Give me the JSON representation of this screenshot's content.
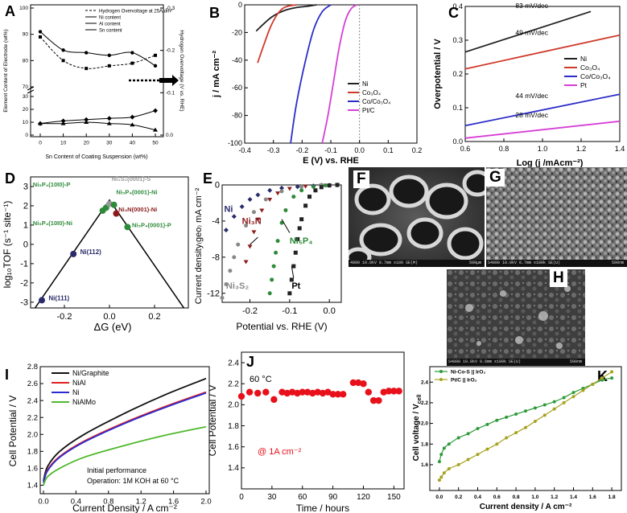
{
  "panels": {
    "A": {
      "label": "A",
      "type": "line",
      "xlabel": "Sn Content of Coating Suspension (wt%)",
      "ylabel": "Element Content of Electrode (wt%)",
      "y2label": "Hydrogen Overvoltage (V vs. RHE)",
      "xticks": [
        "0",
        "10",
        "20",
        "30",
        "40",
        "50"
      ],
      "yticks_upper": [
        "100",
        "90",
        "80",
        "70"
      ],
      "yticks_lower": [
        "30",
        "20",
        "10",
        "0"
      ],
      "y2ticks": [
        "-0.3",
        "-0.2",
        "-0.1",
        "0.0"
      ],
      "legend": [
        "Hydrogen Overvoltage at 25A/dm²",
        "Ni content",
        "Al content",
        "Sn content"
      ],
      "series": [
        {
          "name": "Hydrogen Overvoltage at 25A/dm²",
          "x": [
            0,
            10,
            20,
            30,
            40,
            50
          ],
          "y": [
            89,
            80,
            77,
            78,
            79,
            82
          ]
        },
        {
          "name": "Ni content",
          "x": [
            0,
            10,
            20,
            30,
            40,
            50
          ],
          "y": [
            91,
            84,
            83,
            82,
            83,
            78
          ]
        },
        {
          "name": "Al content",
          "x": [
            0,
            10,
            20,
            30,
            40,
            50
          ],
          "y": [
            9,
            11,
            12,
            13,
            14,
            19
          ]
        },
        {
          "name": "Sn content",
          "x": [
            0,
            10,
            20,
            30,
            40,
            50
          ],
          "y": [
            9,
            9,
            10,
            9,
            8,
            4
          ]
        }
      ]
    },
    "B": {
      "label": "B",
      "type": "line",
      "xlabel": "E (V) vs. RHE",
      "ylabel": "j / mA cm⁻²",
      "xlim": [
        -0.4,
        0.2
      ],
      "ylim": [
        -100,
        0
      ],
      "xticks": [
        "-0.4",
        "-0.3",
        "-0.2",
        "-0.1",
        "0.0",
        "0.1",
        "0.2"
      ],
      "yticks": [
        "0",
        "-20",
        "-40",
        "-60",
        "-80",
        "-100"
      ],
      "legend": [
        "Ni",
        "Co₃O₄",
        "Co/Co₃O₄",
        "Pt/C"
      ],
      "colors": [
        "#222222",
        "#d03a2b",
        "#2c2cc8",
        "#d63fd6"
      ],
      "series": [
        {
          "name": "Ni",
          "x": [
            -0.36,
            -0.33,
            -0.3,
            -0.26,
            -0.22,
            -0.18,
            -0.15
          ],
          "y": [
            -19,
            -13,
            -8,
            -4,
            -2,
            -1,
            0
          ]
        },
        {
          "name": "Co₃O₄",
          "x": [
            -0.355,
            -0.33,
            -0.31,
            -0.29,
            -0.27,
            -0.25,
            -0.22
          ],
          "y": [
            -42,
            -27,
            -16,
            -8,
            -3,
            -1,
            0
          ]
        },
        {
          "name": "Co/Co₃O₄",
          "x": [
            -0.24,
            -0.22,
            -0.19,
            -0.16,
            -0.13,
            -0.1
          ],
          "y": [
            -100,
            -72,
            -42,
            -18,
            -5,
            0
          ]
        },
        {
          "name": "Pt/C",
          "x": [
            -0.13,
            -0.11,
            -0.09,
            -0.07,
            -0.05,
            -0.03,
            -0.01
          ],
          "y": [
            -100,
            -80,
            -55,
            -30,
            -12,
            -3,
            0
          ]
        }
      ]
    },
    "C": {
      "label": "C",
      "type": "line",
      "xlabel": "Log (j /mAcm⁻²)",
      "ylabel": "Overpotential / V",
      "xlim": [
        0.6,
        1.4
      ],
      "ylim": [
        0.0,
        0.4
      ],
      "xticks": [
        "0.6",
        "0.8",
        "1.0",
        "1.2",
        "1.4"
      ],
      "yticks": [
        "0.0",
        "0.1",
        "0.2",
        "0.3",
        "0.4"
      ],
      "legend": [
        "Ni",
        "Co₃O₄",
        "Co/Co₃O₄",
        "Pt"
      ],
      "colors": [
        "#222222",
        "#d03a2b",
        "#2c2cc8",
        "#d63fd6"
      ],
      "annotations": [
        "83 mV/dec",
        "49 mV/dec",
        "44 mV/dec",
        "28 mV/dec"
      ],
      "series": [
        {
          "name": "Ni",
          "x": [
            0.6,
            1.25
          ],
          "y": [
            0.265,
            0.385
          ]
        },
        {
          "name": "Co₃O₄",
          "x": [
            0.6,
            1.4
          ],
          "y": [
            0.215,
            0.315
          ]
        },
        {
          "name": "Co/Co₃O₄",
          "x": [
            0.6,
            1.4
          ],
          "y": [
            0.047,
            0.14
          ]
        },
        {
          "name": "Pt",
          "x": [
            0.6,
            1.4
          ],
          "y": [
            0.01,
            0.06
          ]
        }
      ]
    },
    "D": {
      "label": "D",
      "type": "scatter",
      "xlabel": "ΔG (eV)",
      "ylabel": "log₁₀TOF (s⁻¹ site⁻¹)",
      "xlim": [
        -0.35,
        0.35
      ],
      "ylim": [
        -3.3,
        3.5
      ],
      "xticks": [
        "-0.2",
        "0.0",
        "0.2"
      ],
      "yticks": [
        "3",
        "2",
        "1",
        "0",
        "-1",
        "-2",
        "-3"
      ],
      "points": [
        {
          "label": "Ni(111)",
          "x": -0.3,
          "y": -2.9,
          "color": "#2b2b6b"
        },
        {
          "label": "Ni(112)",
          "x": -0.16,
          "y": -0.5,
          "color": "#2b2b6b"
        },
        {
          "label": "Ni₅P₄(10ī0)-Ni",
          "x": -0.03,
          "y": 1.75,
          "color": "#2e8b3a"
        },
        {
          "label": "Ni₅P₄(10ī0)-P",
          "x": -0.015,
          "y": 1.9,
          "color": "#2e8b3a"
        },
        {
          "label": "Ni₃S₂(0001)-S",
          "x": 0.0,
          "y": 2.1,
          "color": "#999999"
        },
        {
          "label": "Ni₅P₄(0001)-Ni",
          "x": 0.02,
          "y": 2.05,
          "color": "#2e8b3a"
        },
        {
          "label": "Ni₃N(0001)-Ni",
          "x": 0.03,
          "y": 1.6,
          "color": "#8b1a1a"
        },
        {
          "label": "Ni₅P₄(0001)-P",
          "x": 0.08,
          "y": 0.9,
          "color": "#2e8b3a"
        }
      ]
    },
    "E": {
      "label": "E",
      "type": "scatter",
      "xlabel": "Potential vs. RHE (V)",
      "ylabel": "Current density₍geo₎ mA cm⁻²",
      "xlim": [
        -0.27,
        0.03
      ],
      "ylim": [
        -13,
        0
      ],
      "xticks": [
        "-0.2",
        "-0.1",
        "0.0"
      ],
      "yticks": [
        "0",
        "-4",
        "-8",
        "-12"
      ],
      "annotations": [
        "Ni",
        "Ni₃N",
        "Ni₃S₂",
        "Ni₅P₄",
        "Pt"
      ],
      "series": [
        {
          "name": "Ni",
          "color": "#2b2b6b",
          "marker": "diamond",
          "x": [
            -0.26,
            -0.24,
            -0.22,
            -0.2,
            -0.18,
            -0.15,
            -0.12,
            -0.08,
            -0.04,
            0.0,
            0.02
          ],
          "y": [
            -5,
            -3.5,
            -2.4,
            -1.6,
            -1.1,
            -0.6,
            -0.35,
            -0.2,
            -0.1,
            -0.05,
            0
          ]
        },
        {
          "name": "Ni₃N",
          "color": "#8b1a1a",
          "marker": "triangle",
          "x": [
            -0.21,
            -0.2,
            -0.19,
            -0.18,
            -0.17,
            -0.15,
            -0.13,
            -0.1,
            -0.06,
            -0.02,
            0.02
          ],
          "y": [
            -8.5,
            -6.8,
            -5.2,
            -3.8,
            -2.8,
            -1.6,
            -0.9,
            -0.4,
            -0.15,
            -0.05,
            0
          ]
        },
        {
          "name": "Ni₃S₂",
          "color": "#888888",
          "marker": "circle",
          "x": [
            -0.27,
            -0.26,
            -0.25,
            -0.24,
            -0.23,
            -0.21,
            -0.19,
            -0.16,
            -0.12,
            -0.07,
            -0.02
          ],
          "y": [
            -12.5,
            -11,
            -9.5,
            -8,
            -6.6,
            -4.5,
            -3,
            -1.6,
            -0.7,
            -0.2,
            0
          ]
        },
        {
          "name": "Ni₅P₄",
          "color": "#2e8b3a",
          "marker": "circle",
          "x": [
            -0.15,
            -0.145,
            -0.14,
            -0.135,
            -0.13,
            -0.12,
            -0.11,
            -0.09,
            -0.07,
            -0.04,
            -0.01,
            0.02
          ],
          "y": [
            -12,
            -10.5,
            -9,
            -7.5,
            -6.2,
            -4.2,
            -2.8,
            -1.3,
            -0.6,
            -0.2,
            -0.05,
            0
          ]
        },
        {
          "name": "Pt",
          "color": "#222222",
          "marker": "square",
          "x": [
            -0.1,
            -0.095,
            -0.09,
            -0.085,
            -0.08,
            -0.075,
            -0.07,
            -0.06,
            -0.05,
            -0.035,
            -0.02,
            0.0,
            0.02
          ],
          "y": [
            -12,
            -10.5,
            -9,
            -7.5,
            -6,
            -4.8,
            -3.8,
            -2.3,
            -1.3,
            -0.6,
            -0.25,
            -0.05,
            0
          ]
        }
      ]
    },
    "F": {
      "label": "F",
      "caption": "4800 10.0kV 8.7mm x100 SE(M)",
      "scale": "500μm"
    },
    "G": {
      "label": "G",
      "caption": "S4800 10.0kV 8.7mm x100k SE(U)",
      "scale": "500nm"
    },
    "H": {
      "label": "H",
      "caption": "S4800 10.0kV 9.6mm x100k SE(U)",
      "scale": "500nm"
    },
    "I": {
      "label": "I",
      "type": "line",
      "xlabel": "Current Density / A cm⁻²",
      "ylabel": "Cell Potential / V",
      "xlim": [
        0,
        2.0
      ],
      "ylim": [
        1.3,
        2.8
      ],
      "xticks": [
        "0.0",
        "0.4",
        "0.8",
        "1.2",
        "1.6",
        "2.0"
      ],
      "yticks": [
        "1.4",
        "1.6",
        "1.8",
        "2.0",
        "2.2",
        "2.4",
        "2.6",
        "2.8"
      ],
      "legend": [
        "Ni/Graphite",
        "NiAl",
        "Ni",
        "NiAlMo"
      ],
      "colors": [
        "#111111",
        "#e02020",
        "#2a2ad0",
        "#4fb82b"
      ],
      "text_lines": [
        "Initial performance",
        "Operation: 1M KOH at 60 °C"
      ],
      "series": [
        {
          "name": "Ni/Graphite",
          "x": [
            0,
            0.05,
            0.2,
            0.5,
            1.0,
            1.5,
            2.0
          ],
          "y": [
            1.45,
            1.62,
            1.8,
            2.0,
            2.25,
            2.47,
            2.66
          ]
        },
        {
          "name": "NiAl",
          "x": [
            0,
            0.05,
            0.2,
            0.5,
            1.0,
            1.5,
            2.0
          ],
          "y": [
            1.43,
            1.58,
            1.74,
            1.92,
            2.14,
            2.33,
            2.5
          ]
        },
        {
          "name": "Ni",
          "x": [
            0,
            0.05,
            0.2,
            0.5,
            1.0,
            1.5,
            2.0
          ],
          "y": [
            1.43,
            1.57,
            1.73,
            1.91,
            2.13,
            2.32,
            2.49
          ]
        },
        {
          "name": "NiAlMo",
          "x": [
            0,
            0.05,
            0.2,
            0.5,
            1.0,
            1.5,
            2.0
          ],
          "y": [
            1.4,
            1.5,
            1.6,
            1.73,
            1.87,
            1.99,
            2.09
          ]
        }
      ]
    },
    "J": {
      "label": "J",
      "type": "scatter",
      "xlabel": "Time / hours",
      "ylabel": "Cell Potential / V",
      "xlim": [
        0,
        160
      ],
      "ylim": [
        1.2,
        2.5
      ],
      "xticks": [
        "0",
        "30",
        "60",
        "90",
        "120",
        "150"
      ],
      "yticks": [
        "1.4",
        "1.6",
        "1.8",
        "2.0",
        "2.2",
        "2.4"
      ],
      "annotations": [
        "60 °C",
        "@ 1A cm⁻²"
      ],
      "color": "#e8101a",
      "x": [
        0,
        8,
        16,
        24,
        32,
        40,
        45,
        50,
        55,
        60,
        65,
        70,
        75,
        80,
        85,
        90,
        95,
        100,
        110,
        115,
        120,
        125,
        130,
        135,
        140,
        145,
        150,
        155
      ],
      "y": [
        2.08,
        2.12,
        2.11,
        2.12,
        2.05,
        2.12,
        2.11,
        2.12,
        2.11,
        2.12,
        2.12,
        2.11,
        2.12,
        2.11,
        2.12,
        2.1,
        2.1,
        2.1,
        2.21,
        2.21,
        2.2,
        2.12,
        2.04,
        2.04,
        2.12,
        2.13,
        2.13,
        2.13
      ]
    },
    "K": {
      "label": "K",
      "type": "line",
      "xlabel": "Current density / A cm⁻²",
      "ylabel": "Cell voltage / V",
      "ylabel_sub": "cell",
      "xlim": [
        -0.1,
        1.9
      ],
      "ylim": [
        1.35,
        2.55
      ],
      "xticks": [
        "0.0",
        "0.2",
        "0.4",
        "0.6",
        "0.8",
        "1.0",
        "1.2",
        "1.4",
        "1.6",
        "1.8"
      ],
      "yticks": [
        "1.6",
        "1.8",
        "2.0",
        "2.2",
        "2.4"
      ],
      "legend": [
        "Ni-Co-S || IrO₂",
        "Pt/C || IrO₂"
      ],
      "colors": [
        "#2f9a3a",
        "#a7a321"
      ],
      "series": [
        {
          "name": "Ni-Co-S || IrO₂",
          "x": [
            0.0,
            0.02,
            0.05,
            0.1,
            0.2,
            0.3,
            0.4,
            0.5,
            0.6,
            0.7,
            0.8,
            0.9,
            1.0,
            1.1,
            1.2,
            1.3,
            1.4,
            1.5,
            1.6,
            1.7,
            1.8
          ],
          "y": [
            1.63,
            1.7,
            1.76,
            1.8,
            1.86,
            1.9,
            1.95,
            1.99,
            2.03,
            2.06,
            2.09,
            2.12,
            2.15,
            2.18,
            2.21,
            2.25,
            2.3,
            2.34,
            2.38,
            2.42,
            2.44
          ]
        },
        {
          "name": "Pt/C || IrO₂",
          "x": [
            0.0,
            0.02,
            0.05,
            0.1,
            0.2,
            0.3,
            0.4,
            0.5,
            0.6,
            0.7,
            0.8,
            0.9,
            1.0,
            1.1,
            1.2,
            1.3,
            1.4,
            1.5,
            1.6,
            1.7,
            1.8
          ],
          "y": [
            1.45,
            1.48,
            1.52,
            1.56,
            1.6,
            1.65,
            1.7,
            1.75,
            1.8,
            1.86,
            1.91,
            1.96,
            2.02,
            2.08,
            2.14,
            2.2,
            2.26,
            2.32,
            2.38,
            2.44,
            2.5
          ]
        }
      ]
    }
  }
}
